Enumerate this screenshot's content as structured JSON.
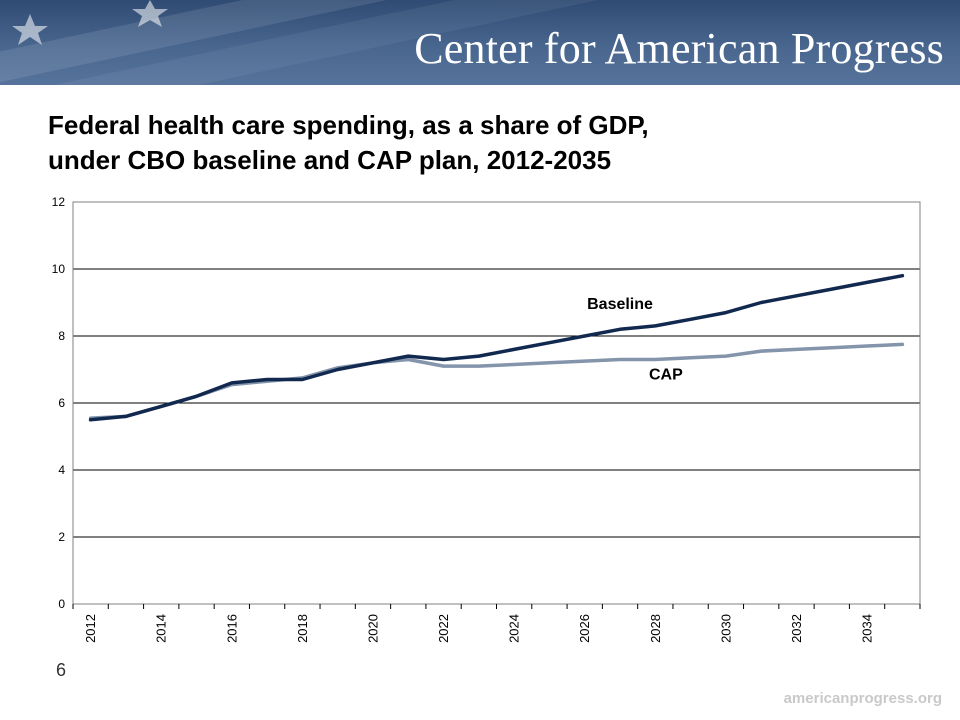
{
  "header": {
    "org_name": "Center for American Progress",
    "title_line1": "Federal health care spending, as a share of GDP,",
    "title_line2": "under CBO baseline and CAP plan, 2012-2035"
  },
  "footer": {
    "slide_number": "6",
    "url": "americanprogress.org"
  },
  "colors": {
    "banner": "#3b5780",
    "baseline_series": "#12294f",
    "cap_series": "#8394ab",
    "gridline": "#000000"
  },
  "chart_data": {
    "type": "line",
    "title": "Federal health care spending, as a share of GDP, under CBO baseline and CAP plan, 2012-2035",
    "xlabel": "",
    "ylabel": "",
    "ylim": [
      0,
      12
    ],
    "yticks": [
      0,
      2,
      4,
      6,
      8,
      10,
      12
    ],
    "grid": true,
    "x": [
      2012,
      2013,
      2014,
      2015,
      2016,
      2017,
      2018,
      2019,
      2020,
      2021,
      2022,
      2023,
      2024,
      2025,
      2026,
      2027,
      2028,
      2029,
      2030,
      2031,
      2032,
      2033,
      2034,
      2035
    ],
    "xtick_labels": [
      "2012",
      "2014",
      "2016",
      "2018",
      "2020",
      "2022",
      "2024",
      "2026",
      "2028",
      "2030",
      "2032",
      "2034"
    ],
    "series": [
      {
        "name": "Baseline",
        "color": "#12294f",
        "values": [
          5.5,
          5.6,
          5.9,
          6.2,
          6.6,
          6.7,
          6.7,
          7.0,
          7.2,
          7.4,
          7.3,
          7.4,
          7.6,
          7.8,
          8.0,
          8.2,
          8.3,
          8.5,
          8.7,
          9.0,
          9.2,
          9.4,
          9.6,
          9.8
        ]
      },
      {
        "name": "CAP",
        "color": "#8394ab",
        "values": [
          5.55,
          5.6,
          5.9,
          6.2,
          6.55,
          6.65,
          6.75,
          7.05,
          7.2,
          7.3,
          7.1,
          7.1,
          7.15,
          7.2,
          7.25,
          7.3,
          7.3,
          7.35,
          7.4,
          7.55,
          7.6,
          7.65,
          7.7,
          7.75
        ]
      }
    ]
  }
}
